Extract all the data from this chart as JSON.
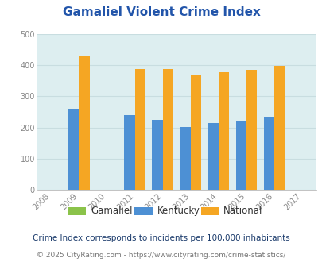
{
  "title": "Gamaliel Violent Crime Index",
  "years": [
    2008,
    2009,
    2010,
    2011,
    2012,
    2013,
    2014,
    2015,
    2016,
    2017
  ],
  "gamaliel": [
    0,
    0,
    0,
    0,
    0,
    0,
    0,
    0,
    0,
    0
  ],
  "kentucky": [
    0,
    260,
    0,
    240,
    224,
    203,
    215,
    222,
    235,
    0
  ],
  "national": [
    0,
    432,
    0,
    388,
    388,
    368,
    378,
    384,
    398,
    0
  ],
  "data_years": [
    2009,
    2011,
    2012,
    2013,
    2014,
    2015,
    2016
  ],
  "bar_width": 0.38,
  "xlim": [
    2007.5,
    2017.5
  ],
  "ylim": [
    0,
    500
  ],
  "yticks": [
    0,
    100,
    200,
    300,
    400,
    500
  ],
  "xticks": [
    2008,
    2009,
    2010,
    2011,
    2012,
    2013,
    2014,
    2015,
    2016,
    2017
  ],
  "color_gamaliel": "#8bc34a",
  "color_kentucky": "#4d90d4",
  "color_national": "#f5a623",
  "fig_bg": "#ffffff",
  "plot_bg": "#ddeef0",
  "title_color": "#2255aa",
  "title_fontsize": 11,
  "footnote1": "Crime Index corresponds to incidents per 100,000 inhabitants",
  "footnote2_left": "© 2025 CityRating.com - ",
  "footnote2_right": "https://www.cityrating.com/crime-statistics/",
  "footnote1_color": "#1a3a6b",
  "footnote2_left_color": "#777777",
  "footnote2_right_color": "#4499cc",
  "grid_color": "#c8dde0",
  "tick_label_color": "#888888",
  "legend_text_color": "#333333"
}
